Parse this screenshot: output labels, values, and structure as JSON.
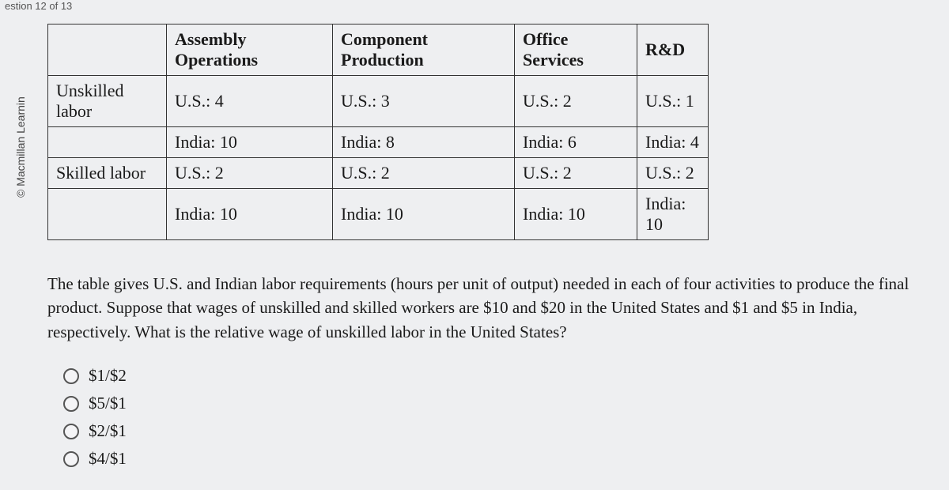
{
  "topbar": {
    "text": "estion 12 of 13"
  },
  "sidebar": {
    "copyright": "© Macmillan Learnin"
  },
  "table": {
    "columns": [
      "",
      "Assembly Operations",
      "Component Production",
      "Office Services",
      "R&D"
    ],
    "rowHeaders": [
      "Unskilled labor",
      "",
      "Skilled labor",
      ""
    ],
    "rows": [
      [
        "U.S.: 4",
        "U.S.: 3",
        "U.S.: 2",
        "U.S.: 1"
      ],
      [
        "India: 10",
        "India: 8",
        "India: 6",
        "India: 4"
      ],
      [
        "U.S.: 2",
        "U.S.: 2",
        "U.S.: 2",
        "U.S.: 2"
      ],
      [
        "India: 10",
        "India: 10",
        "India: 10",
        "India: 10"
      ]
    ],
    "border_color": "#333333",
    "background_color": "#eeeff1",
    "font_size_pt": 16
  },
  "question": {
    "text": "The table gives U.S. and Indian labor requirements (hours per unit of output) needed in each of four activities to produce the final product. Suppose that wages of unskilled and skilled workers are $10 and $20 in the United States and $1 and $5 in India, respectively. What is the relative wage of unskilled labor in the United States?"
  },
  "options": [
    {
      "label": "$1/$2"
    },
    {
      "label": "$5/$1"
    },
    {
      "label": "$2/$1"
    },
    {
      "label": "$4/$1"
    }
  ],
  "colors": {
    "page_bg": "#eeeff1",
    "text": "#1a1a1a",
    "radio_border": "#555555"
  }
}
